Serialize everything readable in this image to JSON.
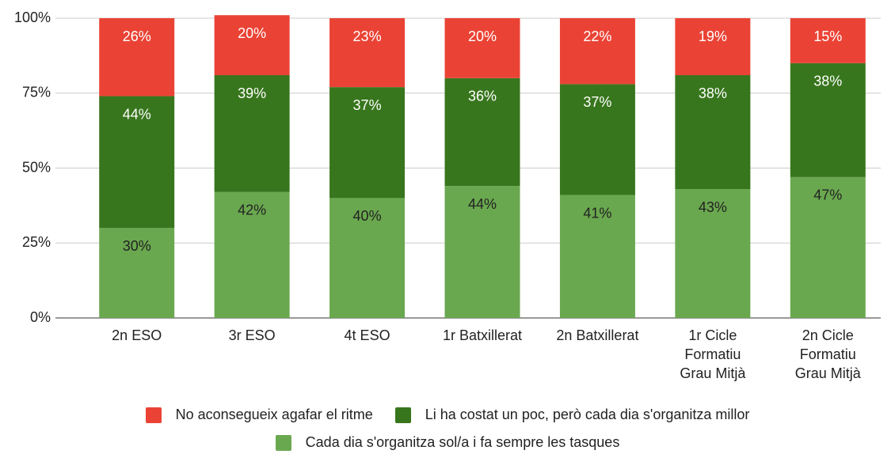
{
  "chart_data": {
    "type": "stacked_bar",
    "categories": [
      "2n ESO",
      "3r ESO",
      "4t ESO",
      "1r Batxillerat",
      "2n Batxillerat",
      "1r Cicle\nFormatiu\nGrau Mitjà",
      "2n Cicle\nFormatiu\nGrau Mitjà"
    ],
    "series": [
      {
        "name": "No aconsegueix agafar el ritme",
        "color": "#ea4335",
        "label_color": "#ffffff",
        "values": [
          26,
          20,
          23,
          20,
          22,
          19,
          15
        ],
        "value_labels": [
          "26%",
          "20%",
          "23%",
          "20%",
          "22%",
          "19%",
          "15%"
        ]
      },
      {
        "name": "Li ha costat un poc, però cada dia s'organitza millor",
        "color": "#38761d",
        "label_color": "#ffffff",
        "values": [
          44,
          39,
          37,
          36,
          37,
          38,
          38
        ],
        "value_labels": [
          "44%",
          "39%",
          "37%",
          "36%",
          "37%",
          "38%",
          "38%"
        ]
      },
      {
        "name": "Cada dia s'organitza sol/a i fa sempre les tasques",
        "color": "#6aa84f",
        "label_color": "#222222",
        "values": [
          30,
          42,
          40,
          44,
          41,
          43,
          47
        ],
        "value_labels": [
          "30%",
          "42%",
          "40%",
          "44%",
          "41%",
          "43%",
          "47%"
        ]
      }
    ],
    "ylim": [
      0,
      100
    ],
    "yticks": [
      {
        "value": 0,
        "label": "0%"
      },
      {
        "value": 25,
        "label": "25%"
      },
      {
        "value": 50,
        "label": "50%"
      },
      {
        "value": 75,
        "label": "75%"
      },
      {
        "value": 100,
        "label": "100%"
      }
    ],
    "grid": true,
    "legend": "bottom"
  }
}
